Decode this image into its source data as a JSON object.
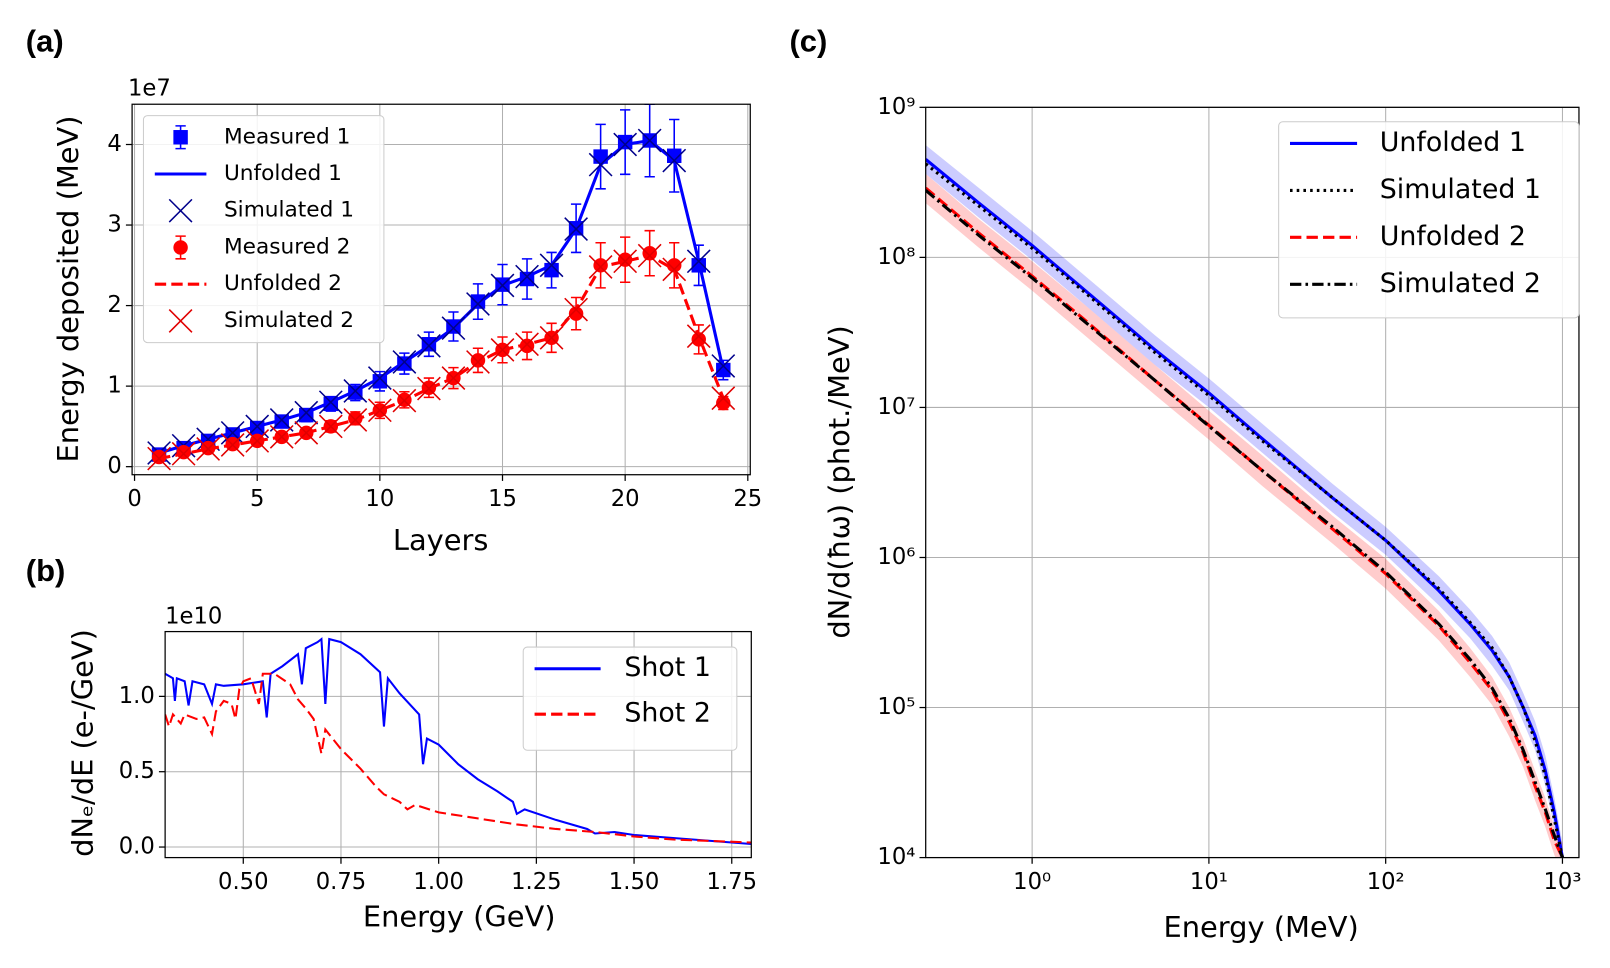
{
  "chart_data": [
    {
      "type": "line",
      "panel_label": "(a)",
      "x_label": "Layers",
      "y_label": "Energy deposited (MeV)",
      "y_offset_label": "1e7",
      "x": [
        1,
        2,
        3,
        4,
        5,
        6,
        7,
        8,
        9,
        10,
        11,
        12,
        13,
        14,
        15,
        16,
        17,
        18,
        19,
        20,
        21,
        22,
        23,
        24
      ],
      "xlim": [
        -0.1,
        25.1
      ],
      "ylim": [
        -0.1,
        4.5
      ],
      "xticks": [
        0,
        5,
        10,
        15,
        20,
        25
      ],
      "yticks": [
        0,
        1,
        2,
        3,
        4
      ],
      "grid": true,
      "legend": "upper left",
      "series": [
        {
          "name": "Measured 1",
          "color": "#0000ff",
          "marker": "square",
          "values": [
            0.15,
            0.23,
            0.32,
            0.4,
            0.48,
            0.56,
            0.64,
            0.78,
            0.92,
            1.06,
            1.28,
            1.52,
            1.74,
            2.05,
            2.26,
            2.33,
            2.44,
            2.96,
            3.85,
            4.03,
            4.05,
            3.86,
            2.5,
            1.2
          ],
          "errors": [
            0.03,
            0.04,
            0.05,
            0.05,
            0.06,
            0.07,
            0.08,
            0.09,
            0.1,
            0.12,
            0.13,
            0.15,
            0.18,
            0.22,
            0.25,
            0.25,
            0.22,
            0.3,
            0.4,
            0.4,
            0.45,
            0.45,
            0.25,
            0.12
          ]
        },
        {
          "name": "Unfolded 1",
          "color": "#0000ff",
          "linestyle": "solid",
          "values": [
            0.17,
            0.26,
            0.34,
            0.42,
            0.5,
            0.58,
            0.67,
            0.8,
            0.94,
            1.1,
            1.3,
            1.5,
            1.72,
            2.02,
            2.25,
            2.36,
            2.5,
            2.95,
            3.75,
            4.0,
            4.05,
            3.8,
            2.55,
            1.2
          ]
        },
        {
          "name": "Simulated 1",
          "color": "#00008b",
          "marker": "x",
          "values": [
            0.17,
            0.26,
            0.34,
            0.42,
            0.5,
            0.58,
            0.67,
            0.8,
            0.94,
            1.1,
            1.3,
            1.5,
            1.72,
            2.02,
            2.25,
            2.36,
            2.5,
            2.95,
            3.75,
            4.0,
            4.05,
            3.8,
            2.55,
            1.25
          ]
        },
        {
          "name": "Measured 2",
          "color": "#ff0000",
          "marker": "circle",
          "values": [
            0.12,
            0.18,
            0.23,
            0.28,
            0.32,
            0.37,
            0.42,
            0.5,
            0.6,
            0.7,
            0.83,
            0.98,
            1.1,
            1.32,
            1.45,
            1.5,
            1.6,
            1.9,
            2.5,
            2.57,
            2.65,
            2.5,
            1.58,
            0.79
          ],
          "errors": [
            0.02,
            0.03,
            0.04,
            0.04,
            0.05,
            0.05,
            0.06,
            0.07,
            0.08,
            0.1,
            0.1,
            0.12,
            0.13,
            0.15,
            0.16,
            0.17,
            0.18,
            0.2,
            0.28,
            0.28,
            0.28,
            0.28,
            0.18,
            0.08
          ]
        },
        {
          "name": "Unfolded 2",
          "color": "#ff0000",
          "linestyle": "dashed",
          "values": [
            0.1,
            0.16,
            0.22,
            0.27,
            0.32,
            0.37,
            0.42,
            0.5,
            0.58,
            0.7,
            0.82,
            0.97,
            1.1,
            1.3,
            1.45,
            1.52,
            1.6,
            1.95,
            2.48,
            2.55,
            2.62,
            2.45,
            1.62,
            0.85
          ]
        },
        {
          "name": "Simulated 2",
          "color": "#e00000",
          "marker": "x",
          "values": [
            0.1,
            0.16,
            0.22,
            0.27,
            0.32,
            0.37,
            0.42,
            0.5,
            0.58,
            0.7,
            0.82,
            0.97,
            1.1,
            1.3,
            1.45,
            1.52,
            1.6,
            1.95,
            2.48,
            2.55,
            2.62,
            2.45,
            1.62,
            0.85
          ]
        }
      ]
    },
    {
      "type": "line",
      "panel_label": "(b)",
      "x_label": "Energy (GeV)",
      "y_label": "dNₑ/dE (e-/GeV)",
      "y_offset_label": "1e10",
      "xlim": [
        0.3,
        1.8
      ],
      "ylim": [
        -0.07,
        1.43
      ],
      "xticks": [
        {
          "value": 0.5,
          "label": "0.50"
        },
        0.75,
        {
          "value": 1,
          "label": "1.00"
        },
        1.25,
        {
          "value": 1.5,
          "label": "1.50"
        },
        1.75
      ],
      "yticks": [
        {
          "value": 0,
          "label": "0.0"
        },
        0.5,
        {
          "value": 1,
          "label": "1.0"
        }
      ],
      "grid": true,
      "legend": "upper right",
      "series": [
        {
          "name": "Shot 1",
          "color": "#0000ff",
          "linestyle": "solid",
          "x": [
            0.3,
            0.32,
            0.325,
            0.33,
            0.35,
            0.36,
            0.37,
            0.4,
            0.42,
            0.43,
            0.45,
            0.5,
            0.55,
            0.56,
            0.57,
            0.6,
            0.64,
            0.65,
            0.66,
            0.69,
            0.7,
            0.71,
            0.72,
            0.75,
            0.8,
            0.85,
            0.86,
            0.87,
            0.9,
            0.95,
            0.96,
            0.97,
            1.0,
            1.05,
            1.1,
            1.15,
            1.19,
            1.2,
            1.22,
            1.3,
            1.38,
            1.4,
            1.45,
            1.5,
            1.6,
            1.7,
            1.8
          ],
          "values": [
            1.15,
            1.12,
            0.97,
            1.12,
            1.1,
            0.94,
            1.1,
            1.08,
            0.95,
            1.08,
            1.07,
            1.08,
            1.1,
            0.86,
            1.15,
            1.2,
            1.28,
            1.08,
            1.32,
            1.36,
            1.38,
            0.95,
            1.38,
            1.36,
            1.28,
            1.16,
            0.8,
            1.12,
            1.02,
            0.88,
            0.55,
            0.72,
            0.68,
            0.55,
            0.45,
            0.37,
            0.3,
            0.22,
            0.25,
            0.18,
            0.12,
            0.09,
            0.1,
            0.08,
            0.06,
            0.04,
            0.02
          ]
        },
        {
          "name": "Shot 2",
          "color": "#ff0000",
          "linestyle": "dashed",
          "x": [
            0.3,
            0.31,
            0.32,
            0.34,
            0.35,
            0.38,
            0.4,
            0.42,
            0.43,
            0.45,
            0.47,
            0.48,
            0.49,
            0.5,
            0.52,
            0.54,
            0.55,
            0.58,
            0.62,
            0.64,
            0.66,
            0.68,
            0.7,
            0.71,
            0.75,
            0.8,
            0.84,
            0.86,
            0.9,
            0.92,
            0.94,
            1.0,
            1.1,
            1.15,
            1.2,
            1.3,
            1.4,
            1.5,
            1.6,
            1.7,
            1.8
          ],
          "values": [
            0.88,
            0.8,
            0.88,
            0.82,
            0.88,
            0.85,
            0.86,
            0.75,
            0.9,
            0.97,
            0.95,
            0.85,
            1.05,
            1.1,
            1.12,
            0.95,
            1.15,
            1.15,
            1.08,
            0.98,
            0.92,
            0.85,
            0.62,
            0.78,
            0.65,
            0.52,
            0.4,
            0.35,
            0.3,
            0.25,
            0.28,
            0.23,
            0.19,
            0.17,
            0.15,
            0.12,
            0.1,
            0.07,
            0.05,
            0.04,
            0.03
          ]
        }
      ]
    },
    {
      "type": "line",
      "panel_label": "(c)",
      "x_label": "Energy (MeV)",
      "y_label": "dN/d(ħω) (phot./MeV)",
      "log_x": true,
      "log_y": true,
      "xlim": [
        0.25,
        1240
      ],
      "ylim": [
        10000,
        1000000000
      ],
      "xticks": [
        {
          "value": 1,
          "label": "10⁰"
        },
        {
          "value": 10,
          "label": "10¹"
        },
        {
          "value": 100,
          "label": "10²"
        },
        {
          "value": 1000,
          "label": "10³"
        }
      ],
      "yticks": [
        {
          "value": 10000,
          "label": "10⁴"
        },
        {
          "value": 100000,
          "label": "10⁵"
        },
        {
          "value": 1000000,
          "label": "10⁶"
        },
        {
          "value": 10000000,
          "label": "10⁷"
        },
        {
          "value": 100000000,
          "label": "10⁸"
        },
        {
          "value": 1000000000,
          "label": "10⁹"
        }
      ],
      "grid": true,
      "legend": "upper right",
      "x": [
        0.25,
        0.5,
        1,
        2,
        5,
        10,
        20,
        50,
        100,
        200,
        300,
        400,
        500,
        600,
        700,
        800,
        900,
        1000
      ],
      "series": [
        {
          "name": "Unfolded 1",
          "color": "#0000ff",
          "linestyle": "solid",
          "values": [
            450000000.0,
            230000000.0,
            120000000.0,
            60000000.0,
            24000000.0,
            12500000.0,
            6200000.0,
            2500000.0,
            1300000.0,
            600000.0,
            360000.0,
            240000.0,
            160000.0,
            100000.0,
            65000.0,
            38000.0,
            20000.0,
            10000.0
          ],
          "upper": [
            560000000.0,
            290000000.0,
            150000000.0,
            75000000.0,
            30000000.0,
            15600000.0,
            7800000.0,
            3100000.0,
            1600000.0,
            750000.0,
            450000.0,
            300000.0,
            200000.0,
            125000.0,
            81000.0,
            48000.0,
            25000.0,
            12500.0
          ],
          "lower": [
            360000000.0,
            184000000.0,
            96000000.0,
            48000000.0,
            19000000.0,
            10000000.0,
            5000000.0,
            2000000.0,
            1040000.0,
            480000.0,
            290000.0,
            190000.0,
            130000.0,
            80000.0,
            52000.0,
            30000.0,
            16000.0,
            8000.0
          ]
        },
        {
          "name": "Simulated 1",
          "color": "#000000",
          "linestyle": "dotted",
          "values": [
            420000000.0,
            220000000.0,
            115000000.0,
            58000000.0,
            23000000.0,
            12000000.0,
            6000000.0,
            2500000.0,
            1300000.0,
            620000.0,
            370000.0,
            250000.0,
            160000.0,
            100000.0,
            60000.0,
            35000.0,
            18000.0,
            10000.0
          ]
        },
        {
          "name": "Unfolded 2",
          "color": "#ff0000",
          "linestyle": "dashed",
          "values": [
            290000000.0,
            145000000.0,
            75000000.0,
            38000000.0,
            15000000.0,
            7600000.0,
            3800000.0,
            1550000.0,
            780000.0,
            350000.0,
            200000.0,
            130000.0,
            80000.0,
            50000.0,
            30000.0,
            20000.0,
            13000.0,
            10000.0
          ],
          "upper": [
            360000000.0,
            180000000.0,
            94000000.0,
            48000000.0,
            19000000.0,
            9500000.0,
            4800000.0,
            1900000.0,
            980000.0,
            440000.0,
            250000.0,
            160000.0,
            100000.0,
            62000.0,
            38000.0,
            25000.0,
            16000.0,
            12500.0
          ],
          "lower": [
            230000000.0,
            116000000.0,
            60000000.0,
            30000000.0,
            12000000.0,
            6100000.0,
            3000000.0,
            1240000.0,
            620000.0,
            280000.0,
            160000.0,
            104000.0,
            64000.0,
            40000.0,
            24000.0,
            16000.0,
            10400.0,
            8000.0
          ]
        },
        {
          "name": "Simulated 2",
          "color": "#000000",
          "linestyle": "dashdot",
          "values": [
            280000000.0,
            140000000.0,
            73000000.0,
            37000000.0,
            15000000.0,
            7500000.0,
            3800000.0,
            1600000.0,
            800000.0,
            360000.0,
            210000.0,
            135000.0,
            85000.0,
            52000.0,
            32000.0,
            21000.0,
            14000.0,
            10000.0
          ]
        }
      ]
    }
  ]
}
